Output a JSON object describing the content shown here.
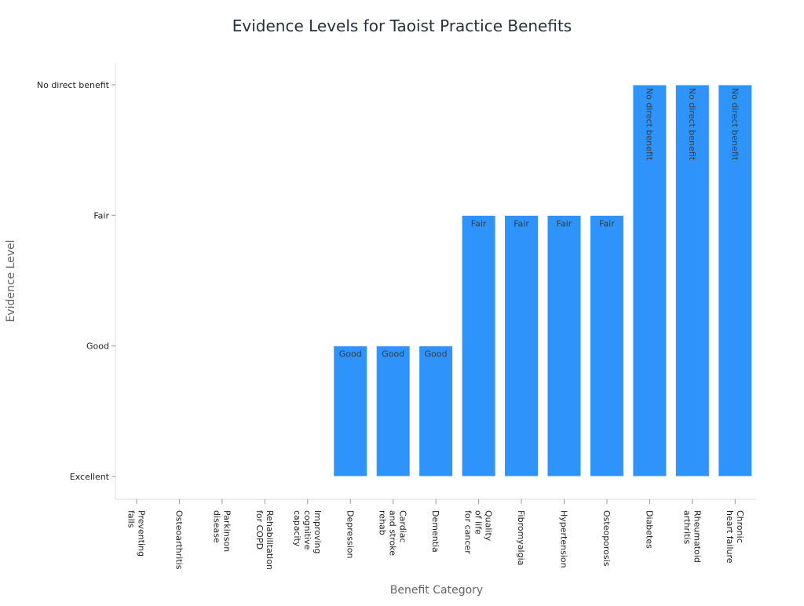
{
  "chart_data": {
    "type": "bar",
    "title": "Evidence Levels for Taoist Practice Benefits",
    "xlabel": "Benefit Category",
    "ylabel": "Evidence Level",
    "y_levels": [
      "Excellent",
      "Good",
      "Fair",
      "No direct benefit"
    ],
    "categories": [
      [
        "Preventing",
        "falls"
      ],
      [
        "Osteoarthritis"
      ],
      [
        "Parkinson",
        "disease"
      ],
      [
        "Rehabilitation",
        "for COPD"
      ],
      [
        "Improving",
        "cognitive",
        "capacity"
      ],
      [
        "Depression"
      ],
      [
        "Cardiac",
        "and stroke",
        "rehab"
      ],
      [
        "Dementia"
      ],
      [
        "Quality",
        "of life",
        "for cancer"
      ],
      [
        "Fibromyalgia"
      ],
      [
        "Hypertension"
      ],
      [
        "Osteoporosis"
      ],
      [
        "Diabetes"
      ],
      [
        "Rheumatoid",
        "arthritis"
      ],
      [
        "Chronic",
        "heart failure"
      ]
    ],
    "values": [
      "Excellent",
      "Excellent",
      "Excellent",
      "Excellent",
      "Excellent",
      "Good",
      "Good",
      "Good",
      "Fair",
      "Fair",
      "Fair",
      "Fair",
      "No direct benefit",
      "No direct benefit",
      "No direct benefit"
    ],
    "bar_color": "#2e93fa",
    "grid": false,
    "legend": "none"
  }
}
